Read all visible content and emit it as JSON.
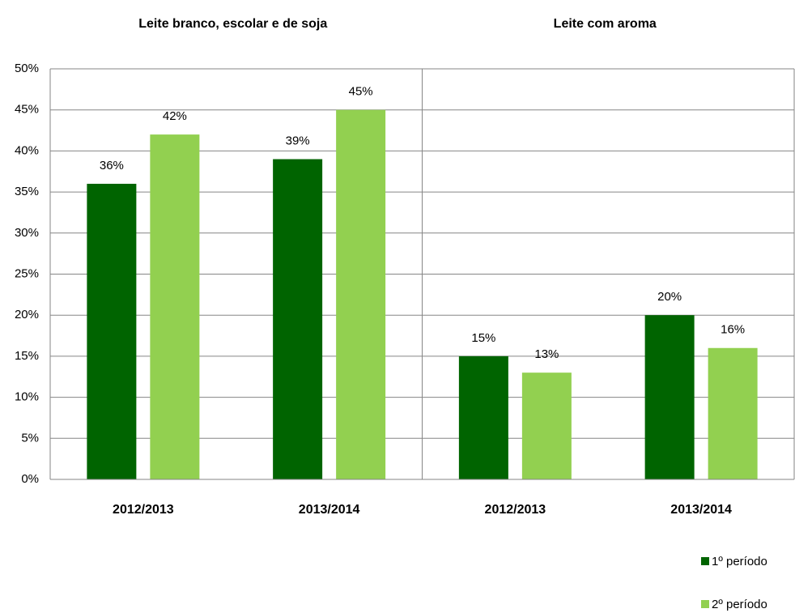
{
  "chart_data": {
    "type": "bar",
    "groups": [
      "Leite branco, escolar e de soja",
      "Leite com aroma"
    ],
    "categories": [
      "2012/2013",
      "2013/2014",
      "2012/2013",
      "2013/2014"
    ],
    "series": [
      {
        "name": "1º período",
        "color": "#006400",
        "values": [
          36,
          39,
          15,
          20
        ],
        "value_labels": [
          "36%",
          "39%",
          "15%",
          "20%"
        ]
      },
      {
        "name": "2º período",
        "color": "#92d050",
        "values": [
          42,
          45,
          13,
          16
        ],
        "value_labels": [
          "42%",
          "45%",
          "13%",
          "16%"
        ]
      }
    ],
    "ylim": [
      0,
      50
    ],
    "yticks": [
      {
        "value": 0,
        "label": "0%"
      },
      {
        "value": 5,
        "label": "5%"
      },
      {
        "value": 10,
        "label": "10%"
      },
      {
        "value": 15,
        "label": "15%"
      },
      {
        "value": 20,
        "label": "20%"
      },
      {
        "value": 25,
        "label": "25%"
      },
      {
        "value": 30,
        "label": "30%"
      },
      {
        "value": 35,
        "label": "35%"
      },
      {
        "value": 40,
        "label": "40%"
      },
      {
        "value": 45,
        "label": "45%"
      },
      {
        "value": 50,
        "label": "50%"
      }
    ],
    "grid": true,
    "legend": "bottom-right"
  }
}
